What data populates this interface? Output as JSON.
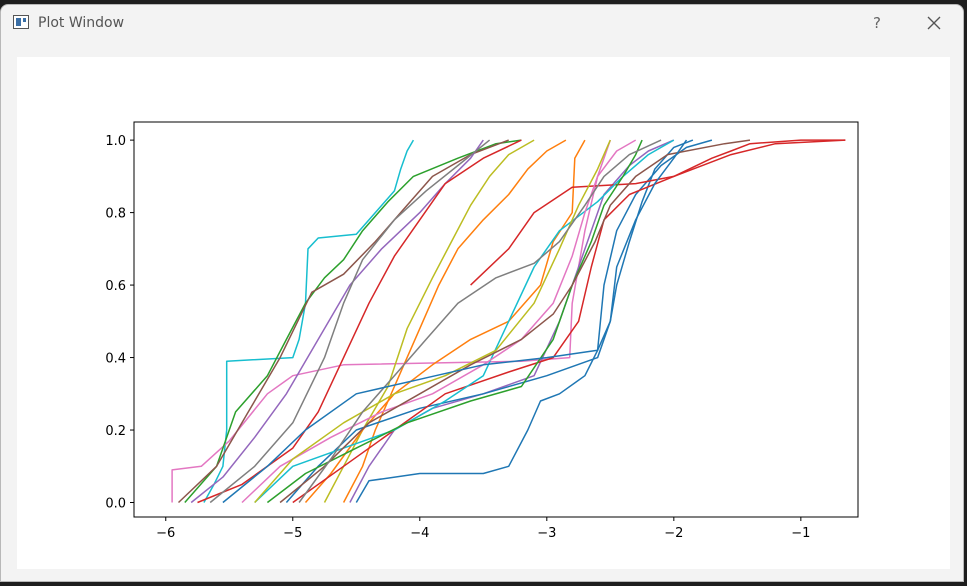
{
  "window": {
    "title": "Plot Window",
    "help_label": "?"
  },
  "icons": {
    "app": "app-window-icon",
    "help": "help-icon",
    "close": "close-icon"
  },
  "chart_data": {
    "type": "line",
    "title": "",
    "xlabel": "",
    "ylabel": "",
    "xlim": [
      -6.25,
      -0.55
    ],
    "ylim": [
      -0.04,
      1.05
    ],
    "xticks": [
      -6,
      -5,
      -4,
      -3,
      -2,
      -1
    ],
    "xtick_labels": [
      "−6",
      "−5",
      "−4",
      "−3",
      "−2",
      "−1"
    ],
    "yticks": [
      0.0,
      0.2,
      0.4,
      0.6,
      0.8,
      1.0
    ],
    "ytick_labels": [
      "0.0",
      "0.2",
      "0.4",
      "0.6",
      "0.8",
      "1.0"
    ],
    "grid": false,
    "colors": [
      "#1f77b4",
      "#ff7f0e",
      "#2ca02c",
      "#d62728",
      "#9467bd",
      "#8c564b",
      "#e377c2",
      "#7f7f7f",
      "#bcbd22",
      "#17becf"
    ],
    "series": [
      {
        "color": "#17becf",
        "points": [
          [
            -5.7,
            0.0
          ],
          [
            -5.62,
            0.05
          ],
          [
            -5.55,
            0.1
          ],
          [
            -5.52,
            0.2
          ],
          [
            -5.52,
            0.39
          ],
          [
            -5.0,
            0.4
          ],
          [
            -4.95,
            0.45
          ],
          [
            -4.9,
            0.55
          ],
          [
            -4.88,
            0.7
          ],
          [
            -4.8,
            0.73
          ],
          [
            -4.5,
            0.74
          ],
          [
            -4.35,
            0.8
          ],
          [
            -4.2,
            0.86
          ],
          [
            -4.15,
            0.92
          ],
          [
            -4.1,
            0.97
          ],
          [
            -4.05,
            1.0
          ]
        ]
      },
      {
        "color": "#e377c2",
        "points": [
          [
            -5.95,
            0.0
          ],
          [
            -5.95,
            0.09
          ],
          [
            -5.72,
            0.1
          ],
          [
            -5.5,
            0.17
          ],
          [
            -5.2,
            0.3
          ],
          [
            -5.0,
            0.35
          ],
          [
            -4.6,
            0.38
          ],
          [
            -3.2,
            0.39
          ],
          [
            -2.82,
            0.4
          ],
          [
            -2.8,
            0.55
          ],
          [
            -2.7,
            0.75
          ],
          [
            -2.6,
            0.9
          ],
          [
            -2.5,
            1.0
          ]
        ]
      },
      {
        "color": "#2ca02c",
        "points": [
          [
            -5.85,
            0.0
          ],
          [
            -5.6,
            0.1
          ],
          [
            -5.45,
            0.25
          ],
          [
            -5.2,
            0.35
          ],
          [
            -5.05,
            0.45
          ],
          [
            -4.9,
            0.55
          ],
          [
            -4.75,
            0.62
          ],
          [
            -4.6,
            0.67
          ],
          [
            -4.45,
            0.75
          ],
          [
            -4.25,
            0.83
          ],
          [
            -4.05,
            0.9
          ],
          [
            -3.7,
            0.95
          ],
          [
            -3.4,
            0.99
          ],
          [
            -3.2,
            1.0
          ]
        ]
      },
      {
        "color": "#8c564b",
        "points": [
          [
            -5.9,
            0.0
          ],
          [
            -5.6,
            0.1
          ],
          [
            -5.35,
            0.25
          ],
          [
            -5.1,
            0.4
          ],
          [
            -4.85,
            0.58
          ],
          [
            -4.6,
            0.63
          ],
          [
            -4.35,
            0.72
          ],
          [
            -4.1,
            0.82
          ],
          [
            -3.9,
            0.9
          ],
          [
            -3.6,
            0.96
          ],
          [
            -3.3,
            1.0
          ]
        ]
      },
      {
        "color": "#9467bd",
        "points": [
          [
            -5.8,
            0.0
          ],
          [
            -5.55,
            0.07
          ],
          [
            -5.3,
            0.18
          ],
          [
            -5.05,
            0.3
          ],
          [
            -4.8,
            0.45
          ],
          [
            -4.55,
            0.6
          ],
          [
            -4.3,
            0.7
          ],
          [
            -4.0,
            0.8
          ],
          [
            -3.8,
            0.88
          ],
          [
            -3.6,
            0.95
          ],
          [
            -3.5,
            1.0
          ]
        ]
      },
      {
        "color": "#d62728",
        "points": [
          [
            -5.75,
            0.0
          ],
          [
            -5.4,
            0.05
          ],
          [
            -5.0,
            0.15
          ],
          [
            -4.8,
            0.25
          ],
          [
            -4.6,
            0.4
          ],
          [
            -4.4,
            0.55
          ],
          [
            -4.2,
            0.68
          ],
          [
            -4.0,
            0.78
          ],
          [
            -3.8,
            0.88
          ],
          [
            -3.5,
            0.95
          ],
          [
            -3.2,
            1.0
          ]
        ]
      },
      {
        "color": "#7f7f7f",
        "points": [
          [
            -5.65,
            0.0
          ],
          [
            -5.3,
            0.1
          ],
          [
            -5.0,
            0.22
          ],
          [
            -4.75,
            0.4
          ],
          [
            -4.6,
            0.55
          ],
          [
            -4.45,
            0.67
          ],
          [
            -4.2,
            0.78
          ],
          [
            -3.95,
            0.86
          ],
          [
            -3.7,
            0.93
          ],
          [
            -3.45,
            1.0
          ]
        ]
      },
      {
        "color": "#bcbd22",
        "points": [
          [
            -4.75,
            0.0
          ],
          [
            -4.6,
            0.1
          ],
          [
            -4.45,
            0.2
          ],
          [
            -4.25,
            0.32
          ],
          [
            -4.1,
            0.48
          ],
          [
            -3.9,
            0.62
          ],
          [
            -3.75,
            0.72
          ],
          [
            -3.6,
            0.82
          ],
          [
            -3.45,
            0.9
          ],
          [
            -3.3,
            0.96
          ],
          [
            -3.1,
            1.0
          ]
        ]
      },
      {
        "color": "#ff7f0e",
        "points": [
          [
            -4.6,
            0.0
          ],
          [
            -4.45,
            0.1
          ],
          [
            -4.35,
            0.2
          ],
          [
            -4.2,
            0.32
          ],
          [
            -4.0,
            0.48
          ],
          [
            -3.85,
            0.6
          ],
          [
            -3.7,
            0.7
          ],
          [
            -3.5,
            0.78
          ],
          [
            -3.3,
            0.85
          ],
          [
            -3.15,
            0.92
          ],
          [
            -3.0,
            0.97
          ],
          [
            -2.85,
            1.0
          ]
        ]
      },
      {
        "color": "#ff7f0e",
        "points": [
          [
            -4.9,
            0.0
          ],
          [
            -4.7,
            0.08
          ],
          [
            -4.45,
            0.2
          ],
          [
            -4.2,
            0.3
          ],
          [
            -3.9,
            0.38
          ],
          [
            -3.6,
            0.45
          ],
          [
            -3.3,
            0.5
          ],
          [
            -3.05,
            0.6
          ],
          [
            -2.95,
            0.72
          ],
          [
            -2.8,
            0.8
          ],
          [
            -2.78,
            0.95
          ],
          [
            -2.7,
            1.0
          ]
        ]
      },
      {
        "color": "#9467bd",
        "points": [
          [
            -4.55,
            0.0
          ],
          [
            -4.4,
            0.1
          ],
          [
            -4.2,
            0.2
          ],
          [
            -3.9,
            0.26
          ],
          [
            -3.5,
            0.3
          ],
          [
            -3.1,
            0.35
          ],
          [
            -2.9,
            0.5
          ],
          [
            -2.75,
            0.65
          ],
          [
            -2.65,
            0.75
          ],
          [
            -2.55,
            0.85
          ],
          [
            -2.35,
            0.93
          ],
          [
            -2.2,
            0.97
          ],
          [
            -2.0,
            1.0
          ]
        ]
      },
      {
        "color": "#1f77b4",
        "points": [
          [
            -4.5,
            0.0
          ],
          [
            -4.4,
            0.06
          ],
          [
            -4.0,
            0.08
          ],
          [
            -3.5,
            0.08
          ],
          [
            -3.3,
            0.1
          ],
          [
            -3.15,
            0.2
          ],
          [
            -3.05,
            0.28
          ],
          [
            -2.9,
            0.3
          ],
          [
            -2.7,
            0.35
          ],
          [
            -2.6,
            0.42
          ],
          [
            -2.55,
            0.6
          ],
          [
            -2.45,
            0.75
          ],
          [
            -2.3,
            0.85
          ],
          [
            -2.1,
            0.93
          ],
          [
            -1.9,
            0.98
          ],
          [
            -1.7,
            1.0
          ]
        ]
      },
      {
        "color": "#1f77b4",
        "points": [
          [
            -5.05,
            0.0
          ],
          [
            -4.8,
            0.1
          ],
          [
            -4.5,
            0.2
          ],
          [
            -4.0,
            0.26
          ],
          [
            -3.5,
            0.3
          ],
          [
            -3.0,
            0.35
          ],
          [
            -2.6,
            0.4
          ],
          [
            -2.5,
            0.5
          ],
          [
            -2.45,
            0.6
          ],
          [
            -2.35,
            0.72
          ],
          [
            -2.25,
            0.83
          ],
          [
            -2.15,
            0.92
          ],
          [
            -2.0,
            0.98
          ],
          [
            -1.85,
            1.0
          ]
        ]
      },
      {
        "color": "#d62728",
        "points": [
          [
            -5.0,
            0.0
          ],
          [
            -4.6,
            0.1
          ],
          [
            -4.2,
            0.2
          ],
          [
            -3.8,
            0.3
          ],
          [
            -3.3,
            0.36
          ],
          [
            -2.95,
            0.4
          ],
          [
            -2.75,
            0.5
          ],
          [
            -2.65,
            0.65
          ],
          [
            -2.55,
            0.78
          ],
          [
            -2.35,
            0.85
          ],
          [
            -2.0,
            0.9
          ],
          [
            -1.7,
            0.95
          ],
          [
            -1.55,
            0.97
          ],
          [
            -1.4,
            0.99
          ],
          [
            -1.0,
            1.0
          ],
          [
            -0.65,
            1.0
          ]
        ]
      },
      {
        "color": "#d62728",
        "points": [
          [
            -3.6,
            0.6
          ],
          [
            -3.3,
            0.7
          ],
          [
            -3.1,
            0.8
          ],
          [
            -2.8,
            0.87
          ],
          [
            -2.3,
            0.88
          ],
          [
            -2.0,
            0.9
          ],
          [
            -1.55,
            0.96
          ],
          [
            -1.2,
            0.99
          ],
          [
            -0.65,
            1.0
          ]
        ]
      },
      {
        "color": "#17becf",
        "points": [
          [
            -5.3,
            0.0
          ],
          [
            -5.0,
            0.1
          ],
          [
            -4.6,
            0.15
          ],
          [
            -4.2,
            0.2
          ],
          [
            -3.8,
            0.28
          ],
          [
            -3.5,
            0.35
          ],
          [
            -3.3,
            0.5
          ],
          [
            -3.1,
            0.65
          ],
          [
            -2.9,
            0.75
          ],
          [
            -2.6,
            0.83
          ],
          [
            -2.4,
            0.9
          ],
          [
            -2.2,
            0.96
          ],
          [
            -2.0,
            1.0
          ]
        ]
      },
      {
        "color": "#2ca02c",
        "points": [
          [
            -5.2,
            0.0
          ],
          [
            -4.9,
            0.08
          ],
          [
            -4.5,
            0.15
          ],
          [
            -4.1,
            0.22
          ],
          [
            -3.6,
            0.28
          ],
          [
            -3.2,
            0.32
          ],
          [
            -2.95,
            0.45
          ],
          [
            -2.8,
            0.6
          ],
          [
            -2.65,
            0.72
          ],
          [
            -2.55,
            0.82
          ],
          [
            -2.4,
            0.9
          ],
          [
            -2.3,
            0.96
          ],
          [
            -2.25,
            1.0
          ]
        ]
      },
      {
        "color": "#e377c2",
        "points": [
          [
            -5.4,
            0.0
          ],
          [
            -5.1,
            0.1
          ],
          [
            -4.7,
            0.18
          ],
          [
            -4.3,
            0.25
          ],
          [
            -3.9,
            0.3
          ],
          [
            -3.5,
            0.38
          ],
          [
            -3.2,
            0.45
          ],
          [
            -2.95,
            0.55
          ],
          [
            -2.8,
            0.68
          ],
          [
            -2.7,
            0.8
          ],
          [
            -2.6,
            0.9
          ],
          [
            -2.45,
            0.97
          ],
          [
            -2.3,
            1.0
          ]
        ]
      },
      {
        "color": "#8c564b",
        "points": [
          [
            -5.1,
            0.0
          ],
          [
            -4.75,
            0.1
          ],
          [
            -4.4,
            0.22
          ],
          [
            -4.0,
            0.3
          ],
          [
            -3.6,
            0.38
          ],
          [
            -3.2,
            0.45
          ],
          [
            -2.95,
            0.52
          ],
          [
            -2.8,
            0.6
          ],
          [
            -2.62,
            0.72
          ],
          [
            -2.5,
            0.82
          ],
          [
            -2.3,
            0.9
          ],
          [
            -2.05,
            0.96
          ],
          [
            -1.6,
            0.99
          ],
          [
            -1.4,
            1.0
          ]
        ]
      },
      {
        "color": "#bcbd22",
        "points": [
          [
            -5.3,
            0.0
          ],
          [
            -5.0,
            0.12
          ],
          [
            -4.6,
            0.22
          ],
          [
            -4.2,
            0.3
          ],
          [
            -3.8,
            0.35
          ],
          [
            -3.4,
            0.42
          ],
          [
            -3.1,
            0.55
          ],
          [
            -2.9,
            0.7
          ],
          [
            -2.75,
            0.82
          ],
          [
            -2.6,
            0.92
          ],
          [
            -2.5,
            1.0
          ]
        ]
      },
      {
        "color": "#7f7f7f",
        "points": [
          [
            -4.95,
            0.0
          ],
          [
            -4.7,
            0.12
          ],
          [
            -4.45,
            0.25
          ],
          [
            -4.2,
            0.35
          ],
          [
            -3.95,
            0.45
          ],
          [
            -3.7,
            0.55
          ],
          [
            -3.4,
            0.62
          ],
          [
            -3.1,
            0.66
          ],
          [
            -2.9,
            0.72
          ],
          [
            -2.7,
            0.82
          ],
          [
            -2.55,
            0.9
          ],
          [
            -2.35,
            0.96
          ],
          [
            -2.1,
            1.0
          ]
        ]
      },
      {
        "color": "#1f77b4",
        "points": [
          [
            -5.55,
            0.0
          ],
          [
            -5.2,
            0.1
          ],
          [
            -4.9,
            0.2
          ],
          [
            -4.5,
            0.3
          ],
          [
            -4.0,
            0.34
          ],
          [
            -3.5,
            0.38
          ],
          [
            -3.0,
            0.4
          ],
          [
            -2.6,
            0.42
          ],
          [
            -2.5,
            0.5
          ],
          [
            -2.45,
            0.65
          ],
          [
            -2.3,
            0.78
          ],
          [
            -2.15,
            0.88
          ],
          [
            -2.0,
            0.95
          ],
          [
            -1.9,
            1.0
          ]
        ]
      }
    ]
  }
}
